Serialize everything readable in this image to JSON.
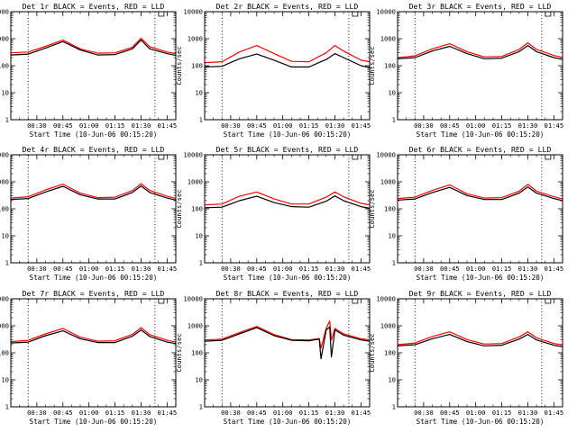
{
  "chart_data": [
    {
      "type": "line",
      "title": "Det 1r BLACK = Events, RED = LLD",
      "xlabel": "Start Time (10-Jun-06 00:15:20)",
      "ylabel": "Counts/sec",
      "yscale": "log",
      "ylim": [
        1,
        10000
      ],
      "xlim_minutes": [
        0,
        95
      ],
      "x_tick_labels": [
        "00:30",
        "00:45",
        "01:00",
        "01:15",
        "01:30",
        "01:45"
      ],
      "y_tick_labels": [
        "1",
        "10",
        "100",
        "1000",
        "10000"
      ],
      "dotted_vlines": [
        "00:25",
        "01:38"
      ],
      "x": [
        "00:15",
        "00:25",
        "00:35",
        "00:45",
        "00:55",
        "01:05",
        "01:15",
        "01:25",
        "01:30",
        "01:35",
        "01:45",
        "01:50"
      ],
      "series": [
        {
          "name": "Events",
          "color": "#000000",
          "values": [
            250,
            270,
            450,
            780,
            380,
            250,
            260,
            420,
            900,
            420,
            280,
            240
          ]
        },
        {
          "name": "LLD",
          "color": "#ff0000",
          "values": [
            300,
            320,
            520,
            900,
            420,
            290,
            300,
            480,
            1050,
            500,
            320,
            280
          ]
        }
      ]
    },
    {
      "type": "line",
      "title": "Det 2r BLACK = Events, RED = LLD",
      "xlabel": "Start Time (10-Jun-06 00:15:20)",
      "ylabel": "Counts/sec",
      "yscale": "log",
      "ylim": [
        1,
        10000
      ],
      "xlim_minutes": [
        0,
        95
      ],
      "x_tick_labels": [
        "00:30",
        "00:45",
        "01:00",
        "01:15",
        "01:30",
        "01:45"
      ],
      "y_tick_labels": [
        "1",
        "10",
        "100",
        "1000",
        "10000"
      ],
      "dotted_vlines": [
        "00:25",
        "01:38"
      ],
      "x": [
        "00:15",
        "00:25",
        "00:35",
        "00:45",
        "00:55",
        "01:05",
        "01:15",
        "01:25",
        "01:30",
        "01:35",
        "01:45",
        "01:50"
      ],
      "series": [
        {
          "name": "Events",
          "color": "#000000",
          "values": [
            90,
            95,
            180,
            270,
            160,
            90,
            90,
            170,
            280,
            200,
            100,
            85
          ]
        },
        {
          "name": "LLD",
          "color": "#ff0000",
          "values": [
            130,
            140,
            320,
            560,
            280,
            145,
            140,
            300,
            560,
            350,
            160,
            140
          ]
        }
      ]
    },
    {
      "type": "line",
      "title": "Det 3r BLACK = Events, RED = LLD",
      "xlabel": "Start Time (10-Jun-06 00:15:20)",
      "ylabel": "Counts/sec",
      "yscale": "log",
      "ylim": [
        1,
        10000
      ],
      "xlim_minutes": [
        0,
        95
      ],
      "x_tick_labels": [
        "00:30",
        "00:45",
        "01:00",
        "01:15",
        "01:30",
        "01:45"
      ],
      "y_tick_labels": [
        "1",
        "10",
        "100",
        "1000",
        "10000"
      ],
      "dotted_vlines": [
        "00:25",
        "01:38"
      ],
      "x": [
        "00:15",
        "00:25",
        "00:35",
        "00:45",
        "00:55",
        "01:05",
        "01:15",
        "01:25",
        "01:30",
        "01:35",
        "01:45",
        "01:50"
      ],
      "series": [
        {
          "name": "Events",
          "color": "#000000",
          "values": [
            180,
            200,
            350,
            520,
            280,
            180,
            190,
            330,
            560,
            330,
            200,
            170
          ]
        },
        {
          "name": "LLD",
          "color": "#ff0000",
          "values": [
            200,
            230,
            420,
            650,
            330,
            210,
            220,
            400,
            700,
            400,
            240,
            200
          ]
        }
      ]
    },
    {
      "type": "line",
      "title": "Det 4r BLACK = Events, RED = LLD",
      "xlabel": "Start Time (10-Jun-06 00:15:20)",
      "ylabel": "Counts/sec",
      "yscale": "log",
      "ylim": [
        1,
        10000
      ],
      "xlim_minutes": [
        0,
        95
      ],
      "x_tick_labels": [
        "00:30",
        "00:45",
        "01:00",
        "01:15",
        "01:30",
        "01:45"
      ],
      "y_tick_labels": [
        "1",
        "10",
        "100",
        "1000",
        "10000"
      ],
      "dotted_vlines": [
        "00:25",
        "01:38"
      ],
      "x": [
        "00:15",
        "00:25",
        "00:35",
        "00:45",
        "00:55",
        "01:05",
        "01:15",
        "01:25",
        "01:30",
        "01:35",
        "01:45",
        "01:50"
      ],
      "series": [
        {
          "name": "Events",
          "color": "#000000",
          "values": [
            220,
            240,
            420,
            680,
            330,
            230,
            230,
            400,
            700,
            400,
            250,
            210
          ]
        },
        {
          "name": "LLD",
          "color": "#ff0000",
          "values": [
            250,
            280,
            500,
            820,
            380,
            260,
            270,
            470,
            850,
            480,
            290,
            240
          ]
        }
      ]
    },
    {
      "type": "line",
      "title": "Det 5r BLACK = Events, RED = LLD",
      "xlabel": "Start Time (10-Jun-06 00:15:20)",
      "ylabel": "Counts/sec",
      "yscale": "log",
      "ylim": [
        1,
        10000
      ],
      "xlim_minutes": [
        0,
        95
      ],
      "x_tick_labels": [
        "00:30",
        "00:45",
        "01:00",
        "01:15",
        "01:30",
        "01:45"
      ],
      "y_tick_labels": [
        "1",
        "10",
        "100",
        "1000",
        "10000"
      ],
      "dotted_vlines": [
        "00:25",
        "01:38"
      ],
      "x": [
        "00:15",
        "00:25",
        "00:35",
        "00:45",
        "00:55",
        "01:05",
        "01:15",
        "01:25",
        "01:30",
        "01:35",
        "01:45",
        "01:50"
      ],
      "series": [
        {
          "name": "Events",
          "color": "#000000",
          "values": [
            110,
            115,
            200,
            290,
            170,
            120,
            115,
            190,
            300,
            200,
            120,
            105
          ]
        },
        {
          "name": "LLD",
          "color": "#ff0000",
          "values": [
            140,
            150,
            290,
            420,
            230,
            150,
            150,
            270,
            420,
            280,
            160,
            140
          ]
        }
      ]
    },
    {
      "type": "line",
      "title": "Det 6r BLACK = Events, RED = LLD",
      "xlabel": "Start Time (10-Jun-06 00:15:20)",
      "ylabel": "Counts/sec",
      "yscale": "log",
      "ylim": [
        1,
        10000
      ],
      "xlim_minutes": [
        0,
        95
      ],
      "x_tick_labels": [
        "00:30",
        "00:45",
        "01:00",
        "01:15",
        "01:30",
        "01:45"
      ],
      "y_tick_labels": [
        "1",
        "10",
        "100",
        "1000",
        "10000"
      ],
      "dotted_vlines": [
        "00:25",
        "01:38"
      ],
      "x": [
        "00:15",
        "00:25",
        "00:35",
        "00:45",
        "00:55",
        "01:05",
        "01:15",
        "01:25",
        "01:30",
        "01:35",
        "01:45",
        "01:50"
      ],
      "series": [
        {
          "name": "Events",
          "color": "#000000",
          "values": [
            210,
            230,
            400,
            620,
            310,
            220,
            220,
            380,
            640,
            380,
            240,
            200
          ]
        },
        {
          "name": "LLD",
          "color": "#ff0000",
          "values": [
            240,
            270,
            480,
            770,
            360,
            250,
            260,
            450,
            800,
            450,
            280,
            230
          ]
        }
      ]
    },
    {
      "type": "line",
      "title": "Det 7r BLACK = Events, RED = LLD",
      "xlabel": "Start Time (10-Jun-06 00:15:20)",
      "ylabel": "Counts/sec",
      "yscale": "log",
      "ylim": [
        1,
        10000
      ],
      "xlim_minutes": [
        0,
        95
      ],
      "x_tick_labels": [
        "00:30",
        "00:45",
        "01:00",
        "01:15",
        "01:30",
        "01:45"
      ],
      "y_tick_labels": [
        "1",
        "10",
        "100",
        "1000",
        "10000"
      ],
      "dotted_vlines": [
        "00:25",
        "01:38"
      ],
      "x": [
        "00:15",
        "00:25",
        "00:35",
        "00:45",
        "00:55",
        "01:05",
        "01:15",
        "01:25",
        "01:30",
        "01:35",
        "01:45",
        "01:50"
      ],
      "series": [
        {
          "name": "Events",
          "color": "#000000",
          "values": [
            230,
            250,
            430,
            650,
            330,
            240,
            240,
            410,
            700,
            400,
            250,
            220
          ]
        },
        {
          "name": "LLD",
          "color": "#ff0000",
          "values": [
            260,
            290,
            500,
            800,
            380,
            270,
            280,
            480,
            850,
            470,
            290,
            250
          ]
        }
      ]
    },
    {
      "type": "line",
      "title": "Det 8r BLACK = Events, RED = LLD",
      "xlabel": "Start Time (10-Jun-06 00:15:20)",
      "ylabel": "Counts/sec",
      "yscale": "log",
      "ylim": [
        1,
        10000
      ],
      "xlim_minutes": [
        0,
        95
      ],
      "x_tick_labels": [
        "00:30",
        "00:45",
        "01:00",
        "01:15",
        "01:30",
        "01:45"
      ],
      "y_tick_labels": [
        "1",
        "10",
        "100",
        "1000",
        "10000"
      ],
      "dotted_vlines": [
        "00:25",
        "01:38"
      ],
      "x": [
        "00:15",
        "00:25",
        "00:35",
        "00:45",
        "00:55",
        "01:05",
        "01:15",
        "01:21",
        "01:22",
        "01:25",
        "01:27",
        "01:28",
        "01:30",
        "01:35",
        "01:45",
        "01:50"
      ],
      "series": [
        {
          "name": "Events",
          "color": "#000000",
          "values": [
            270,
            290,
            500,
            850,
            430,
            290,
            280,
            320,
            60,
            700,
            900,
            70,
            700,
            450,
            300,
            270
          ]
        },
        {
          "name": "LLD",
          "color": "#ff0000",
          "values": [
            300,
            320,
            560,
            950,
            470,
            310,
            300,
            340,
            150,
            800,
            1500,
            300,
            800,
            500,
            330,
            300
          ]
        }
      ]
    },
    {
      "type": "line",
      "title": "Det 9r BLACK = Events, RED = LLD",
      "xlabel": "Start Time (10-Jun-06 00:15:20)",
      "ylabel": "Counts/sec",
      "yscale": "log",
      "ylim": [
        1,
        10000
      ],
      "xlim_minutes": [
        0,
        95
      ],
      "x_tick_labels": [
        "00:30",
        "00:45",
        "01:00",
        "01:15",
        "01:30",
        "01:45"
      ],
      "y_tick_labels": [
        "1",
        "10",
        "100",
        "1000",
        "10000"
      ],
      "dotted_vlines": [
        "00:25",
        "01:38"
      ],
      "x": [
        "00:15",
        "00:25",
        "00:35",
        "00:45",
        "00:55",
        "01:05",
        "01:15",
        "01:25",
        "01:30",
        "01:35",
        "01:45",
        "01:50"
      ],
      "series": [
        {
          "name": "Events",
          "color": "#000000",
          "values": [
            180,
            200,
            330,
            480,
            260,
            180,
            190,
            320,
            480,
            300,
            190,
            170
          ]
        },
        {
          "name": "LLD",
          "color": "#ff0000",
          "values": [
            200,
            230,
            400,
            600,
            310,
            210,
            220,
            390,
            600,
            360,
            220,
            200
          ]
        }
      ]
    }
  ]
}
